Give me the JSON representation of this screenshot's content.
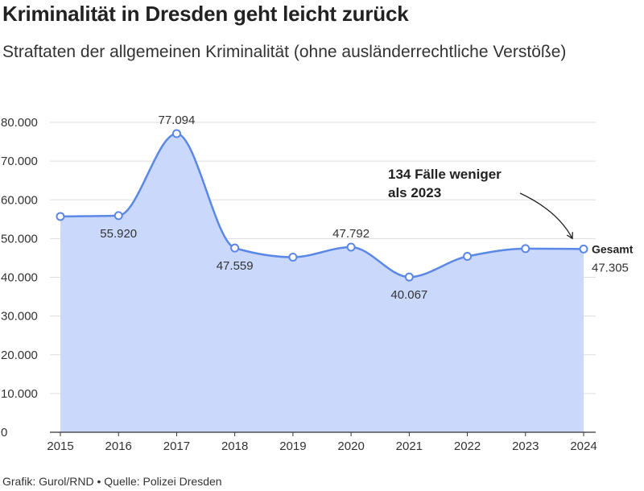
{
  "header": {
    "title": "Kriminalität in Dresden geht leicht zurück",
    "subtitle": "Straftaten der allgemeinen Kriminalität (ohne ausländerrechtliche Verstöße)"
  },
  "footer": {
    "credit": "Grafik: Gurol/RND",
    "separator": "•",
    "source": "Quelle: Polizei Dresden"
  },
  "chart_data": {
    "type": "area",
    "x": [
      "2015",
      "2016",
      "2017",
      "2018",
      "2019",
      "2020",
      "2021",
      "2022",
      "2023",
      "2024"
    ],
    "series": [
      {
        "name": "Gesamt",
        "values": [
          55700,
          55920,
          77094,
          47559,
          45200,
          47792,
          40067,
          45400,
          47400,
          47305
        ]
      }
    ],
    "data_labels": [
      {
        "index": 1,
        "text": "55.920"
      },
      {
        "index": 2,
        "text": "77.094"
      },
      {
        "index": 3,
        "text": "47.559"
      },
      {
        "index": 5,
        "text": "47.792"
      },
      {
        "index": 6,
        "text": "40.067"
      },
      {
        "index": 9,
        "text": "47.305"
      }
    ],
    "y_ticks": [
      "0",
      "10.000",
      "20.000",
      "30.000",
      "40.000",
      "50.000",
      "60.000",
      "70.000",
      "80.000"
    ],
    "ylim": [
      0,
      80000
    ],
    "grid": true,
    "annotation": {
      "lines": [
        "134 Fälle weniger",
        "als 2023"
      ],
      "points_to_index": 9
    },
    "colors": {
      "line": "#5b87e6",
      "fill": "#c9d8fb",
      "grid": "#dddddd"
    }
  }
}
